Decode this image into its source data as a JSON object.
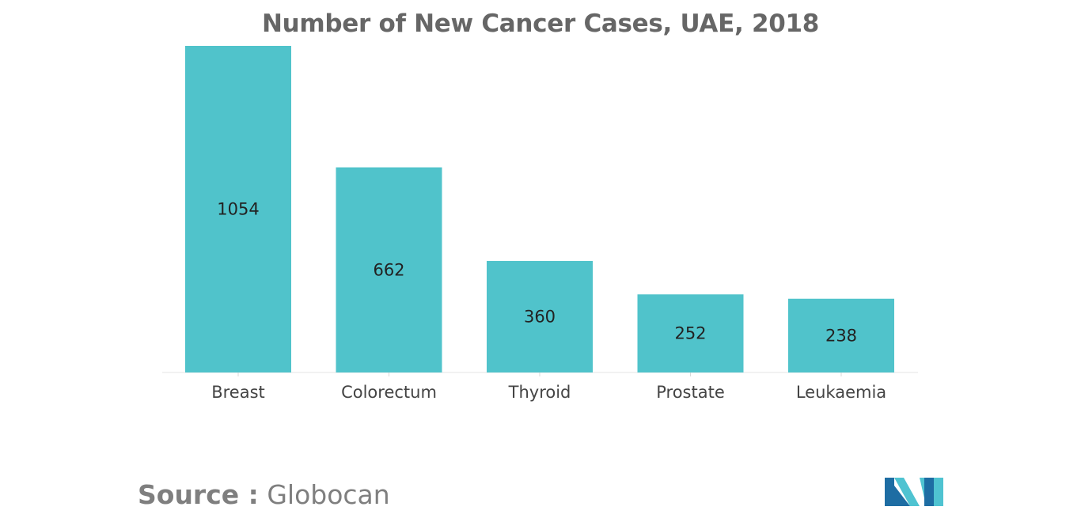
{
  "chart_data": {
    "type": "bar",
    "title": "Number of New Cancer Cases, UAE, 2018",
    "categories": [
      "Breast",
      "Colorectum",
      "Thyroid",
      "Prostate",
      "Leukaemia"
    ],
    "values": [
      1054,
      662,
      360,
      252,
      238
    ],
    "xlabel": "",
    "ylabel": "",
    "ylim": [
      0,
      1054
    ],
    "grid": false,
    "bar_color": "#50C3CB"
  },
  "source": {
    "label": "Source :",
    "value": "Globocan"
  },
  "logo": {
    "icon": "mordor-intelligence-logo-icon",
    "colors": [
      "#1E6DA3",
      "#4FC3D1"
    ]
  }
}
